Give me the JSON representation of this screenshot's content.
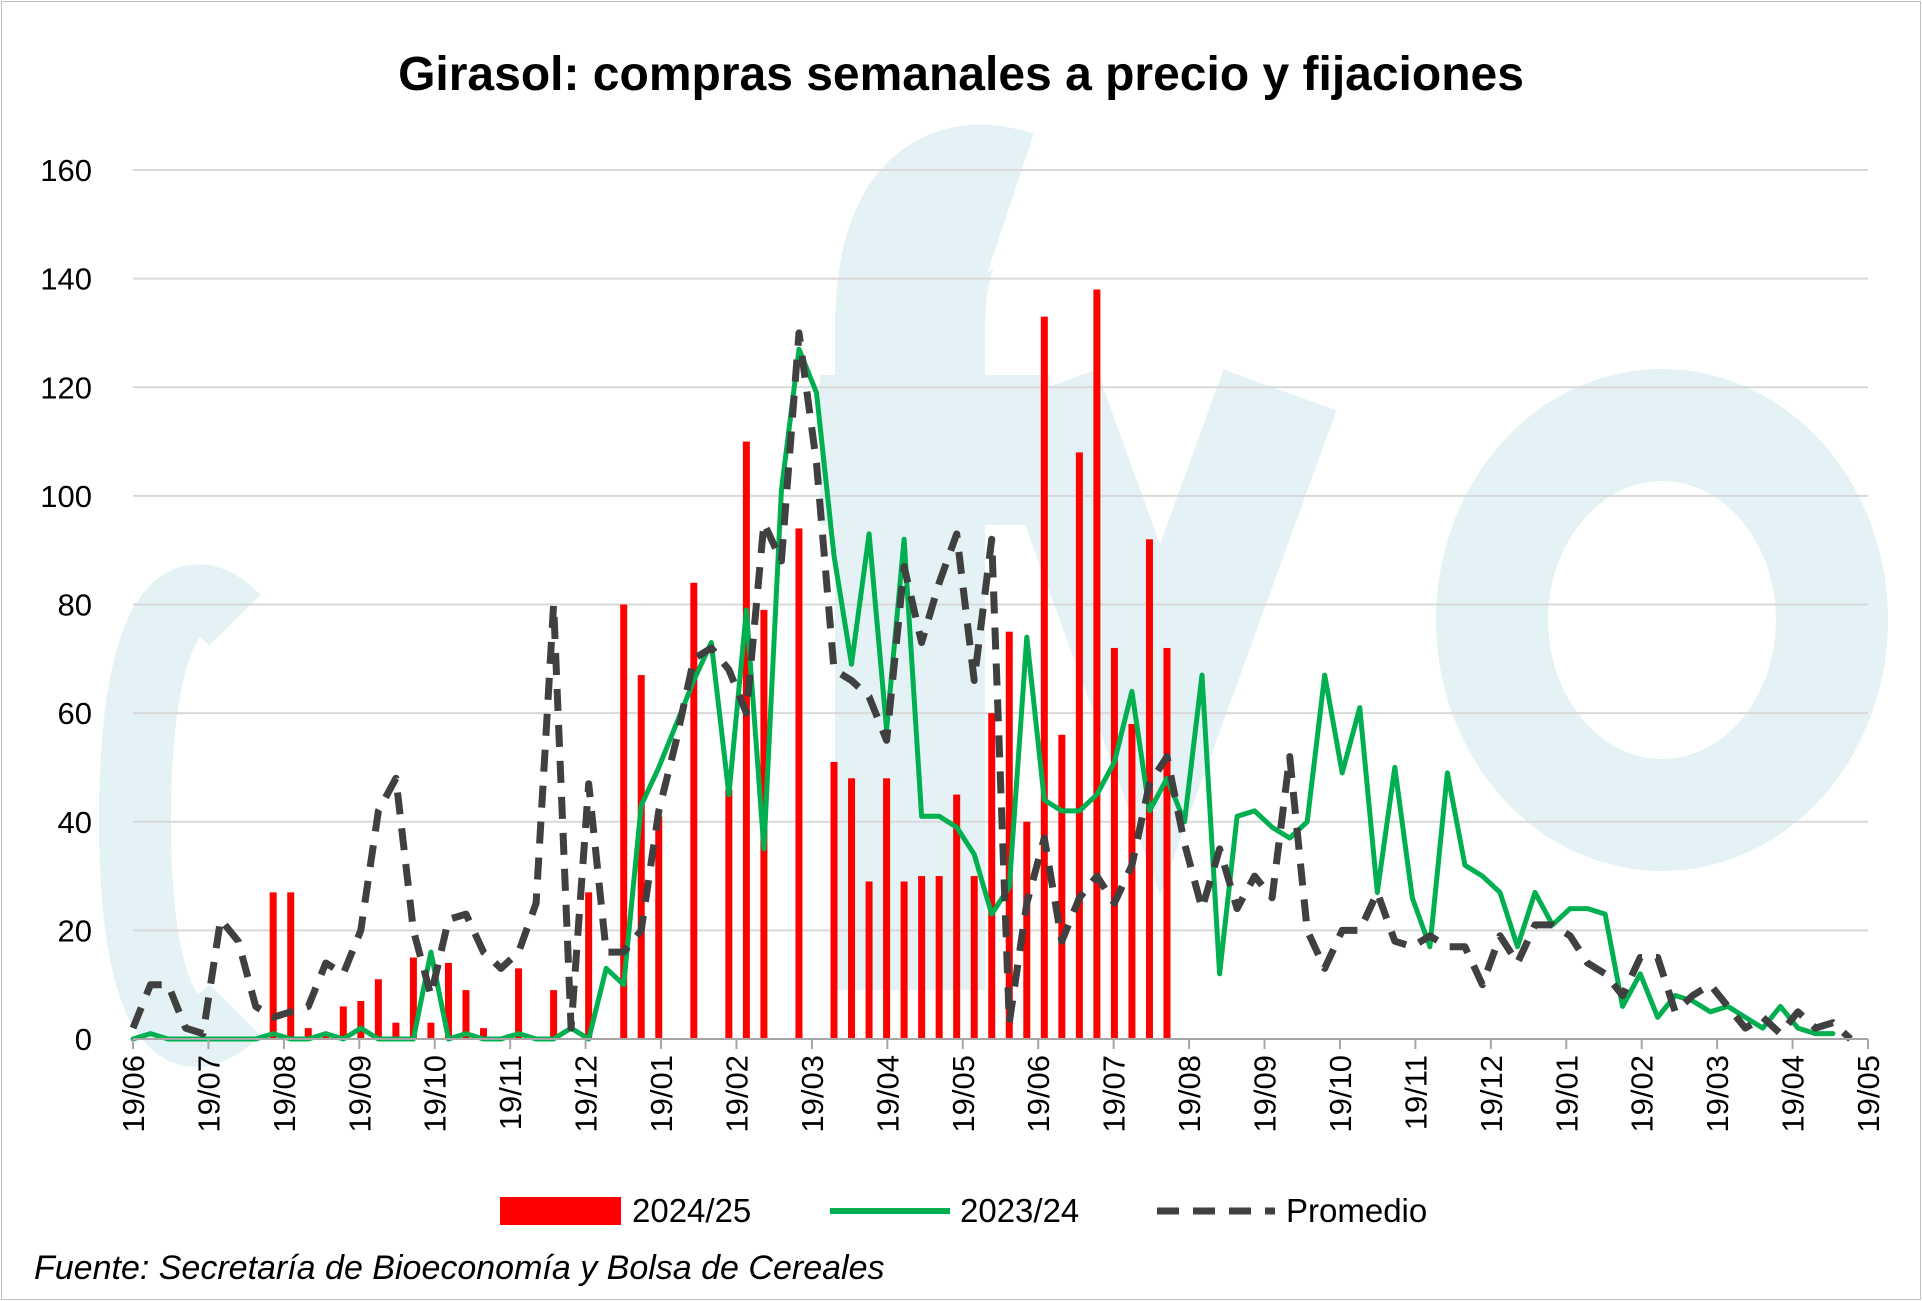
{
  "chart_data": {
    "type": "bar+line",
    "title": "Girasol: compras semanales a precio y fijaciones",
    "xlabel": "",
    "ylabel": "",
    "ylim": [
      0,
      160
    ],
    "yticks": [
      0,
      20,
      40,
      60,
      80,
      100,
      120,
      140,
      160
    ],
    "grid": true,
    "x_tick_labels": [
      "19/06",
      "19/07",
      "19/08",
      "19/09",
      "19/10",
      "19/11",
      "19/12",
      "19/01",
      "19/02",
      "19/03",
      "19/04",
      "19/05",
      "19/06",
      "19/07",
      "19/08",
      "19/09",
      "19/10",
      "19/11",
      "19/12",
      "19/01",
      "19/02",
      "19/03",
      "19/04",
      "19/05"
    ],
    "legend_position": "bottom",
    "series": [
      {
        "name": "2024/25",
        "type": "bar",
        "color": "#ff0000",
        "values": [
          0,
          0,
          0,
          0,
          0,
          0,
          0,
          0,
          27,
          27,
          2,
          1,
          6,
          7,
          11,
          3,
          15,
          3,
          14,
          9,
          2,
          0,
          13,
          0,
          9,
          0,
          27,
          0,
          80,
          67,
          41,
          0,
          84,
          0,
          46,
          110,
          79,
          0,
          94,
          0,
          51,
          48,
          29,
          48,
          29,
          30,
          30,
          45,
          30,
          60,
          75,
          40,
          133,
          56,
          108,
          138,
          72,
          58,
          92,
          72,
          0
        ]
      },
      {
        "name": "2023/24",
        "type": "line",
        "color": "#00b050",
        "values": [
          0,
          1,
          0,
          0,
          0,
          0,
          0,
          0,
          1,
          0,
          0,
          1,
          0,
          2,
          0,
          0,
          0,
          16,
          0,
          1,
          0,
          0,
          1,
          0,
          0,
          2,
          0,
          13,
          10,
          43,
          50,
          58,
          66,
          73,
          45,
          79,
          35,
          101,
          127,
          119,
          89,
          69,
          93,
          57,
          92,
          41,
          41,
          39,
          34,
          23,
          28,
          74,
          44,
          42,
          42,
          45,
          51,
          64,
          42,
          48,
          40,
          67,
          12,
          41,
          42,
          39,
          37,
          40,
          67,
          49,
          61,
          27,
          50,
          26,
          17,
          49,
          32,
          30,
          27,
          17,
          27,
          21,
          24,
          24,
          23,
          6,
          12,
          4,
          8,
          7,
          5,
          6,
          4,
          2,
          6,
          2,
          1,
          1
        ]
      },
      {
        "name": "Promedio",
        "type": "line",
        "style": "dashed",
        "color": "#404040",
        "values": [
          2,
          10,
          10,
          2,
          1,
          22,
          18,
          6,
          4,
          5,
          6,
          14,
          12,
          20,
          42,
          48,
          20,
          8,
          22,
          23,
          16,
          13,
          16,
          25,
          80,
          2,
          47,
          16,
          16,
          20,
          42,
          55,
          70,
          72,
          68,
          60,
          95,
          88,
          130,
          106,
          68,
          66,
          63,
          55,
          87,
          73,
          84,
          93,
          66,
          92,
          3,
          25,
          37,
          18,
          26,
          30,
          25,
          32,
          47,
          52,
          36,
          24,
          35,
          24,
          30,
          26,
          52,
          20,
          13,
          20,
          20,
          27,
          18,
          17,
          19,
          17,
          17,
          10,
          19,
          14,
          21,
          21,
          19,
          14,
          12,
          8,
          15,
          15,
          5,
          8,
          10,
          6,
          2,
          4,
          1,
          5,
          2,
          3,
          0
        ]
      }
    ]
  },
  "footer": {
    "source": "Fuente: Secretaría de Bioeconomía y Bolsa de Cereales"
  },
  "watermark": {
    "text": "cfyo",
    "color": "#e4f1f5"
  }
}
